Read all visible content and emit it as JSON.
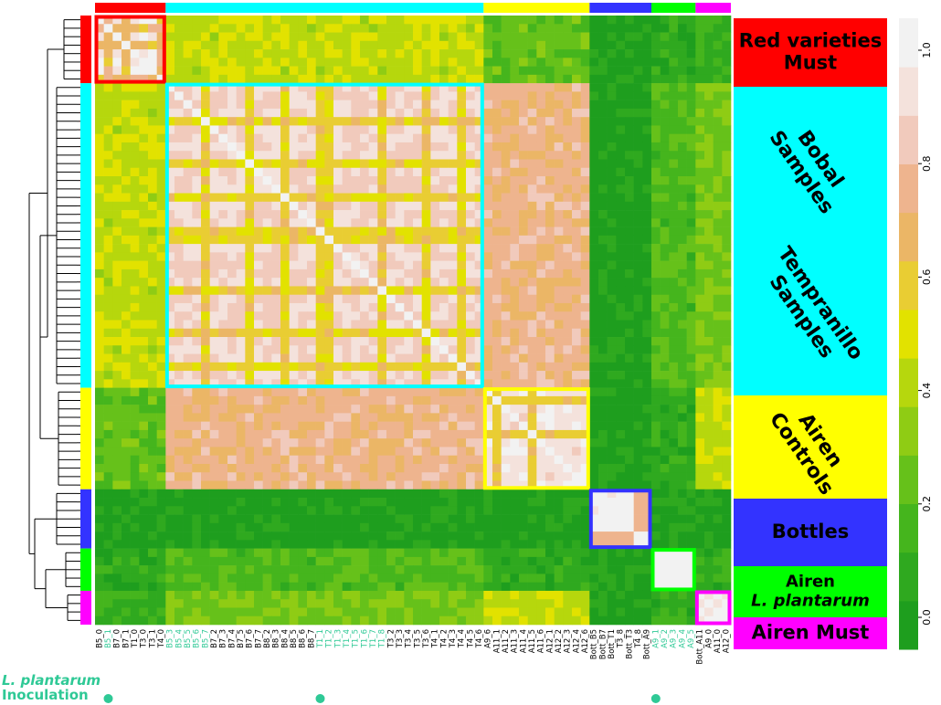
{
  "chart_data": {
    "type": "heatmap",
    "colorbar": {
      "ticks": [
        "0.0",
        "0.2",
        "0.4",
        "0.6",
        "0.8",
        "1.0"
      ],
      "min": 0.0,
      "max": 1.0,
      "colors": [
        "#1e9e1e",
        "#2fa91f",
        "#45b51d",
        "#66c11a",
        "#8fcc14",
        "#b6d70d",
        "#e2e200",
        "#e9cd33",
        "#ebb666",
        "#eeb48e",
        "#f1cabc",
        "#f4e2dc",
        "#f2f2f2"
      ]
    },
    "groups": [
      {
        "key": "red",
        "side_label": [
          "Red varieties",
          "Must"
        ],
        "color": "#ff0000",
        "count": 7,
        "rotated": false
      },
      {
        "key": "bt",
        "side_label": [
          "Bobal",
          "Samples"
        ],
        "side_label2": [
          "Tempranillo",
          "Samples"
        ],
        "color": "#00ffff",
        "count": 30,
        "rotated": true
      },
      {
        "key": "ctl",
        "side_label": [
          "Airen",
          "Controls"
        ],
        "color": "#ffff00",
        "count": 10,
        "rotated": true
      },
      {
        "key": "bot",
        "side_label": [
          "Bottles"
        ],
        "color": "#3333ff",
        "count": 7,
        "rotated": false
      },
      {
        "key": "lp",
        "side_label": [
          "Airen",
          "L. plantarum"
        ],
        "color": "#00ff00",
        "count": 5,
        "rotated": false
      },
      {
        "key": "must",
        "side_label": [
          "Airen Must"
        ],
        "color": "#ff00ff",
        "count": 3,
        "rotated": false
      }
    ],
    "labels": [
      "B5_0",
      "B5_1",
      "B7_0",
      "B7_1",
      "T1_0",
      "T3_0",
      "T3_1",
      "T4_0",
      "B5_3",
      "B5_4",
      "B5_5",
      "B5_6",
      "B5_7",
      "B7_2",
      "B7_3",
      "B7_4",
      "B7_5",
      "B7_6",
      "B7_7",
      "B8_2",
      "B8_3",
      "B8_4",
      "B8_5",
      "B8_6",
      "B8_7",
      "T1_1",
      "T1_2",
      "T1_3",
      "T1_4",
      "T1_5",
      "T1_6",
      "T1_7",
      "T1_8",
      "T3_2",
      "T3_3",
      "T3_4",
      "T3_5",
      "T3_6",
      "T4_1",
      "T4_2",
      "T4_3",
      "T4_4",
      "T4_5",
      "T4_6",
      "A9_6",
      "A11_1",
      "A11_2",
      "A11_3",
      "A11_4",
      "A11_5",
      "A11_6",
      "A12_1",
      "A12_2",
      "A12_3",
      "A12_4",
      "A12_6",
      "Bott_B5",
      "Bott_B7",
      "Bott_T1",
      "T3_8",
      "Bott_T3",
      "T4_8",
      "Bott_A9",
      "A9_1",
      "A9_2",
      "A9_3",
      "A9_4",
      "A9_5",
      "Bott_A11",
      "A9_0",
      "A11_0",
      "A12_0"
    ],
    "highlighted_labels": [
      "B5_1",
      "B5_3",
      "B5_4",
      "B5_5",
      "B5_6",
      "B5_7",
      "T1_1",
      "T1_2",
      "T1_3",
      "T1_4",
      "T1_5",
      "T1_6",
      "T1_7",
      "T1_8",
      "A9_1",
      "A9_2",
      "A9_3",
      "A9_4",
      "A9_5"
    ],
    "bottom_legend": [
      "L. plantarum",
      "Inoculation"
    ],
    "title": "",
    "xlabel": "",
    "ylabel": ""
  },
  "colors": {
    "highlight_text": "#2fc996",
    "dot": "#2fc996"
  }
}
